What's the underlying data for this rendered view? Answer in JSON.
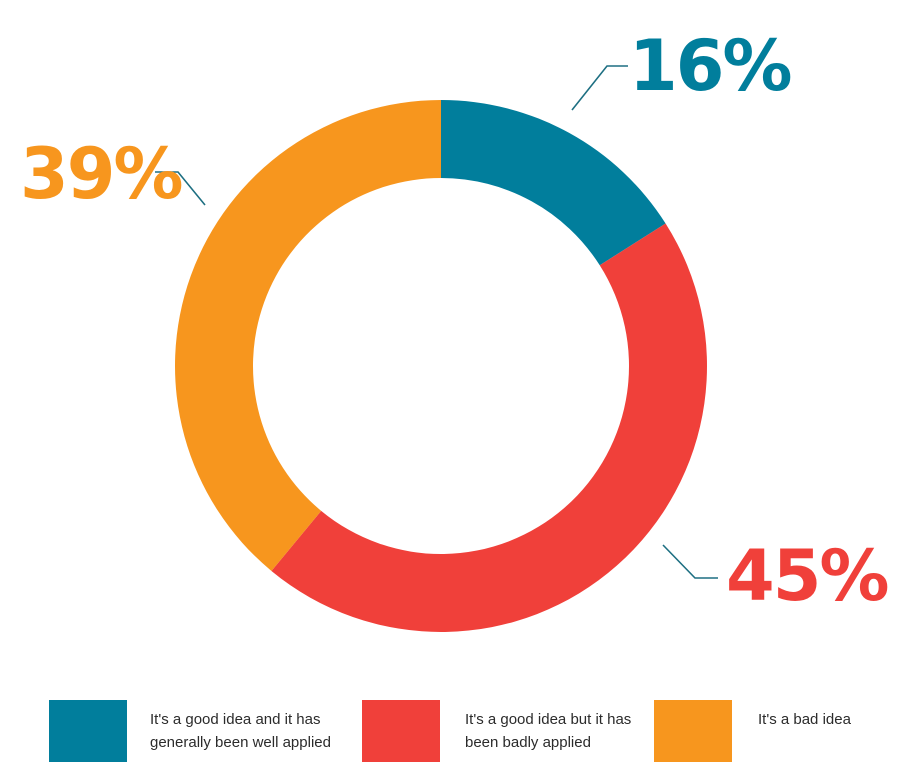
{
  "chart_data": {
    "type": "pie",
    "variant": "donut",
    "slices": [
      {
        "label": "It's a good idea and it has\ngenerally been well applied",
        "value": 16,
        "display": "16%",
        "color": "#017e9c"
      },
      {
        "label": "It's a good idea but it has\nbeen badly applied",
        "value": 45,
        "display": "45%",
        "color": "#f0403a"
      },
      {
        "label": "It's a bad idea",
        "value": 39,
        "display": "39%",
        "color": "#f7961e"
      }
    ],
    "legend_position": "bottom",
    "leader_line_color": "#1d6f82"
  }
}
